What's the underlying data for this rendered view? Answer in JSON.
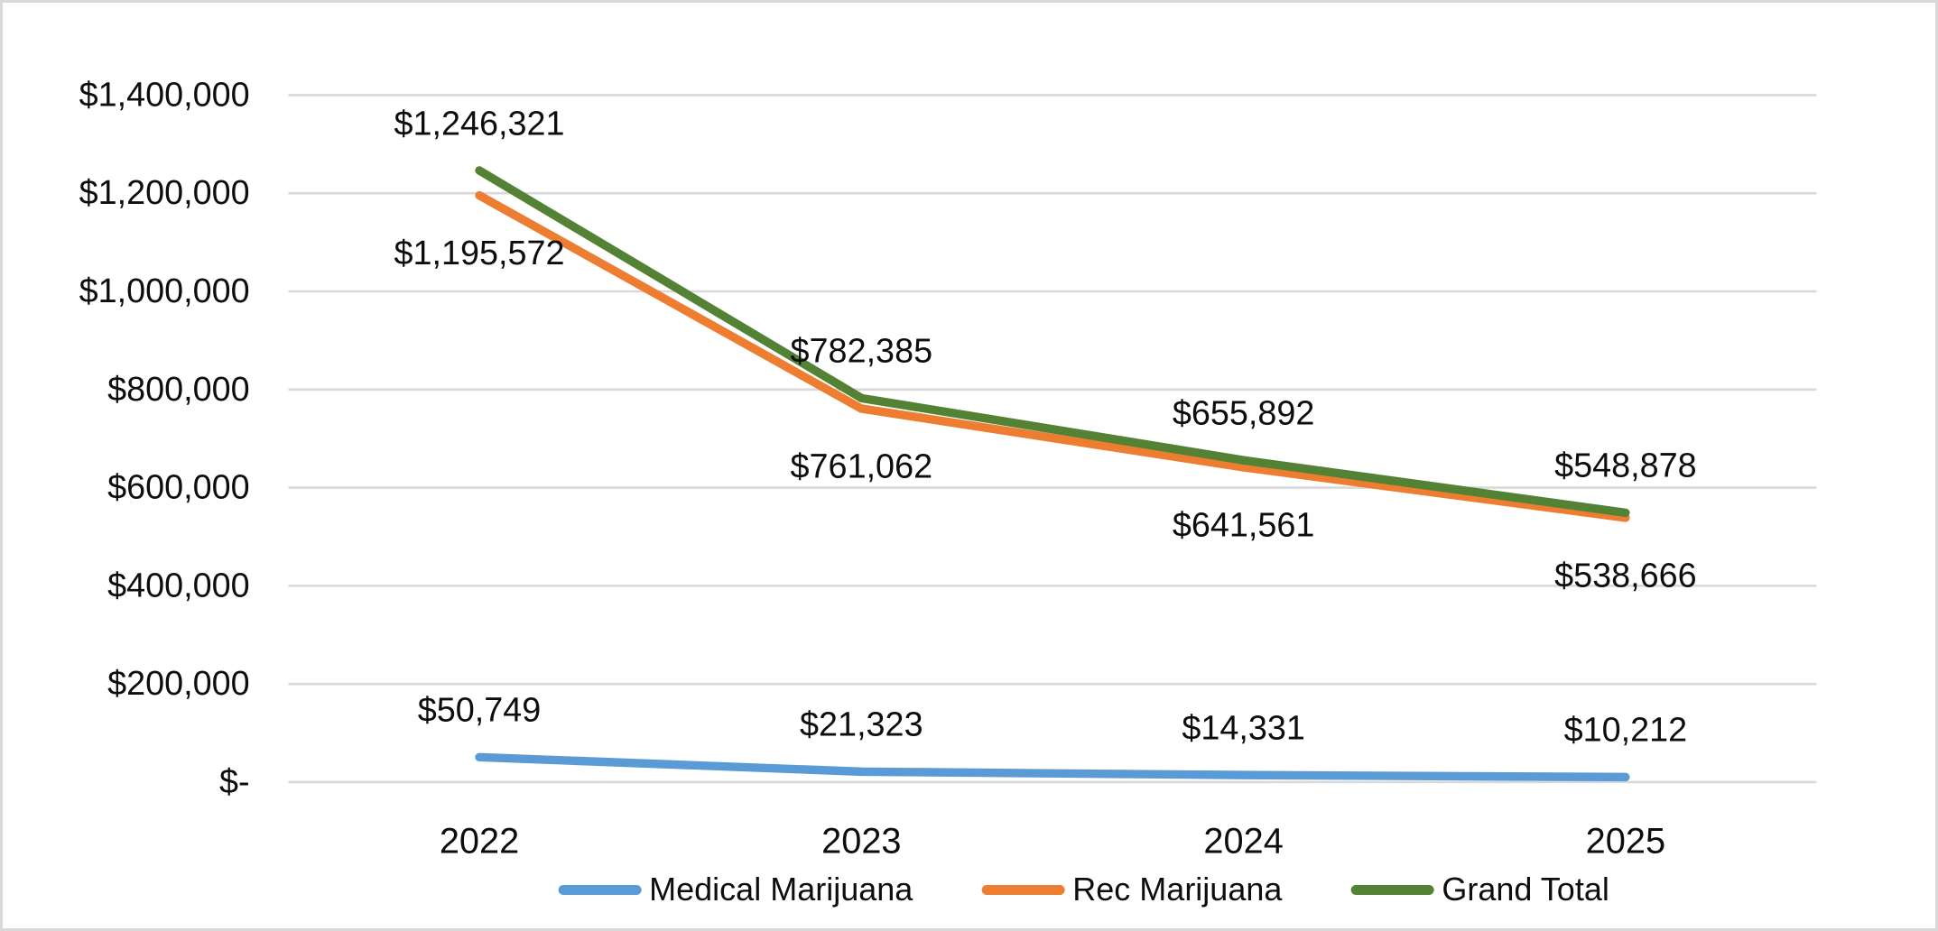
{
  "chart_data": {
    "type": "line",
    "title": "",
    "categories": [
      "2022",
      "2023",
      "2024",
      "2025"
    ],
    "series": [
      {
        "name": "Medical Marijuana",
        "color": "#5B9BD5",
        "values": [
          50749,
          21323,
          14331,
          10212
        ],
        "data_labels": [
          "$50,749",
          "$21,323",
          "$14,331",
          "$10,212"
        ],
        "label_position": "above"
      },
      {
        "name": "Rec Marijuana",
        "color": "#ED7D31",
        "values": [
          1195572,
          761062,
          641561,
          538666
        ],
        "data_labels": [
          "$1,195,572",
          "$761,062",
          "$641,561",
          "$538,666"
        ],
        "label_position": "below"
      },
      {
        "name": "Grand Total",
        "color": "#548235",
        "values": [
          1246321,
          782385,
          655892,
          548878
        ],
        "data_labels": [
          "$1,246,321",
          "$782,385",
          "$655,892",
          "$548,878"
        ],
        "label_position": "above"
      }
    ],
    "y_axis": {
      "min": 0,
      "max": 1400000,
      "tick_interval": 200000,
      "tick_labels": [
        {
          "value": 0,
          "label": "$-"
        },
        {
          "value": 200000,
          "label": "$200,000"
        },
        {
          "value": 400000,
          "label": "$400,000"
        },
        {
          "value": 600000,
          "label": "$600,000"
        },
        {
          "value": 800000,
          "label": "$800,000"
        },
        {
          "value": 1000000,
          "label": "$1,000,000"
        },
        {
          "value": 1200000,
          "label": "$1,200,000"
        },
        {
          "value": 1400000,
          "label": "$1,400,000"
        }
      ]
    },
    "xlabel": "",
    "ylabel": "",
    "grid": true,
    "legend_position": "bottom",
    "colors": {
      "gridline": "#D9D9D9",
      "frame_border": "#D9D9D9",
      "text": "#0D0D0D",
      "background": "#FFFFFF"
    }
  }
}
